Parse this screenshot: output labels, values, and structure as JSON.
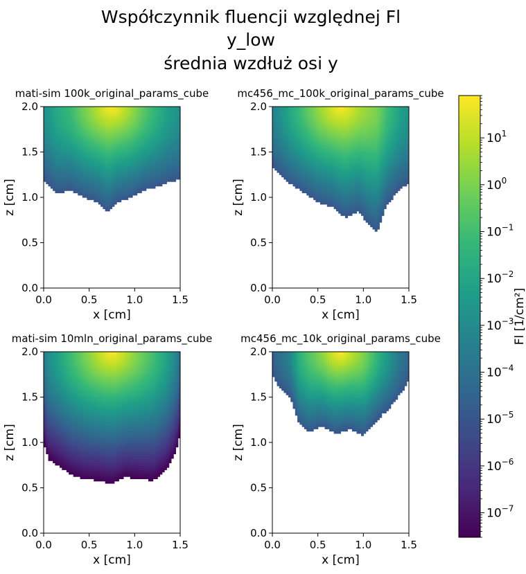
{
  "figure": {
    "title_lines": [
      "Współczynnik fluencji względnej Fl",
      "y_low",
      "średnia wzdłuż osi y"
    ]
  },
  "colorbar": {
    "label": "Fl [1/cm²]",
    "scale": "log",
    "colormap": "viridis",
    "colormap_stops": [
      "#440154",
      "#482878",
      "#3e4989",
      "#31688e",
      "#26828e",
      "#1f9e89",
      "#35b779",
      "#6ece58",
      "#b5de2b",
      "#fde725"
    ],
    "range": [
      3e-08,
      80
    ],
    "tick_exponents": [
      -7,
      -6,
      -5,
      -4,
      -3,
      -2,
      -1,
      0,
      1
    ]
  },
  "chart_data": [
    {
      "type": "heatmap",
      "title": "mati-sim 100k_original_params_cube",
      "xlabel": "x [cm]",
      "ylabel": "z [cm]",
      "xlim": [
        0.0,
        1.5
      ],
      "ylim": [
        0.0,
        2.0
      ],
      "xticks": [
        "0.0",
        "0.5",
        "1.0",
        "1.5"
      ],
      "yticks": [
        "0.0",
        "0.5",
        "1.0",
        "1.5",
        "2.0"
      ],
      "source": {
        "x": 0.75,
        "z": 2.0
      },
      "peak_value": 80,
      "boundary": {
        "x": [
          0.0,
          0.05,
          0.15,
          0.3,
          0.45,
          0.6,
          0.7,
          0.8,
          0.95,
          1.1,
          1.25,
          1.4,
          1.5
        ],
        "z": [
          1.2,
          1.15,
          1.05,
          1.08,
          1.0,
          0.95,
          0.85,
          0.95,
          1.0,
          1.08,
          1.12,
          1.18,
          1.2
        ]
      },
      "edge_value": 1e-05
    },
    {
      "type": "heatmap",
      "title": "mc456_mc_100k_original_params_cube",
      "xlabel": "x [cm]",
      "ylabel": "z [cm]",
      "xlim": [
        0.0,
        1.5
      ],
      "ylim": [
        0.0,
        2.0
      ],
      "xticks": [
        "0.0",
        "0.5",
        "1.0",
        "1.5"
      ],
      "yticks": [
        "0.0",
        "0.5",
        "1.0",
        "1.5",
        "2.0"
      ],
      "source": {
        "x": 0.75,
        "z": 2.0
      },
      "peak_value": 80,
      "boundary": {
        "x": [
          0.0,
          0.05,
          0.2,
          0.35,
          0.5,
          0.65,
          0.8,
          0.95,
          1.05,
          1.15,
          1.25,
          1.4,
          1.5
        ],
        "z": [
          1.35,
          1.3,
          1.15,
          1.05,
          0.95,
          0.9,
          0.78,
          0.85,
          0.7,
          0.62,
          0.9,
          1.1,
          1.15
        ]
      },
      "edge_value": 1e-05
    },
    {
      "type": "heatmap",
      "title": "mati-sim 10mln_original_params_cube",
      "xlabel": "x [cm]",
      "ylabel": "z [cm]",
      "xlim": [
        0.0,
        1.5
      ],
      "ylim": [
        0.0,
        2.0
      ],
      "xticks": [
        "0.0",
        "0.5",
        "1.0",
        "1.5"
      ],
      "yticks": [
        "0.0",
        "0.5",
        "1.0",
        "1.5",
        "2.0"
      ],
      "source": {
        "x": 0.75,
        "z": 2.0
      },
      "peak_value": 80,
      "boundary": {
        "x": [
          0.0,
          0.05,
          0.15,
          0.3,
          0.45,
          0.6,
          0.75,
          0.9,
          1.05,
          1.2,
          1.35,
          1.45,
          1.5
        ],
        "z": [
          1.0,
          0.82,
          0.75,
          0.65,
          0.6,
          0.58,
          0.55,
          0.62,
          0.6,
          0.58,
          0.7,
          0.9,
          1.1
        ]
      },
      "edge_value": 3e-08
    },
    {
      "type": "heatmap",
      "title": "mc456_mc_10k_original_params_cube",
      "xlabel": "x [cm]",
      "ylabel": "z [cm]",
      "xlim": [
        0.0,
        1.5
      ],
      "ylim": [
        0.0,
        2.0
      ],
      "xticks": [
        "0.0",
        "0.5",
        "1.0",
        "1.5"
      ],
      "yticks": [
        "0.0",
        "0.5",
        "1.0",
        "1.5",
        "2.0"
      ],
      "source": {
        "x": 0.75,
        "z": 2.0
      },
      "peak_value": 80,
      "boundary": {
        "x": [
          0.0,
          0.05,
          0.2,
          0.3,
          0.4,
          0.55,
          0.7,
          0.85,
          1.0,
          1.15,
          1.3,
          1.45,
          1.5
        ],
        "z": [
          1.75,
          1.65,
          1.5,
          1.2,
          1.12,
          1.18,
          1.1,
          1.15,
          1.08,
          1.25,
          1.4,
          1.6,
          1.7
        ]
      },
      "edge_value": 1e-05
    }
  ]
}
